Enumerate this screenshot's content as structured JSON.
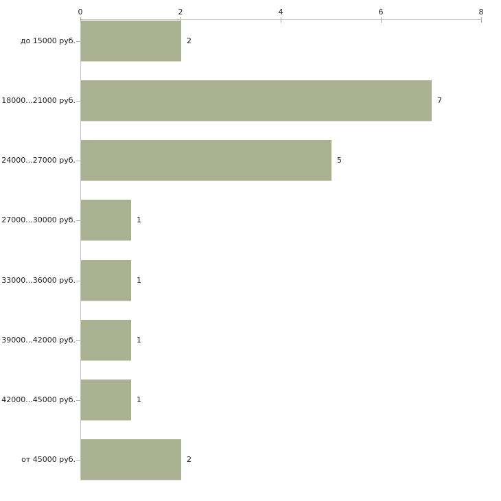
{
  "chart_data": {
    "type": "bar",
    "orientation": "horizontal",
    "title": "",
    "xlabel": "",
    "ylabel": "",
    "categories": [
      "до 15000 руб.",
      "18000...21000 руб.",
      "24000...27000 руб.",
      "27000...30000 руб.",
      "33000...36000 руб.",
      "39000...42000 руб.",
      "42000...45000 руб.",
      "от 45000 руб."
    ],
    "values": [
      2,
      7,
      5,
      1,
      1,
      1,
      1,
      2
    ],
    "value_labels": [
      "2",
      "7",
      "5",
      "1",
      "1",
      "1",
      "1",
      "2"
    ],
    "x_ticks": [
      0,
      2,
      4,
      6,
      8
    ],
    "x_tick_labels": [
      "0",
      "2",
      "4",
      "6",
      "8"
    ],
    "xlim": [
      0,
      8
    ],
    "grid": false,
    "legend": false,
    "colors": {
      "bar_fill": "#aab192",
      "bar_bottom_edge": "#d6d8ca",
      "axis_line": "#c8c8c4",
      "x_tick_mark": "#b6b08a",
      "y_tick_mark": "#b4b4b0",
      "text": "#1c1c1c",
      "background": "#ffffff"
    }
  }
}
